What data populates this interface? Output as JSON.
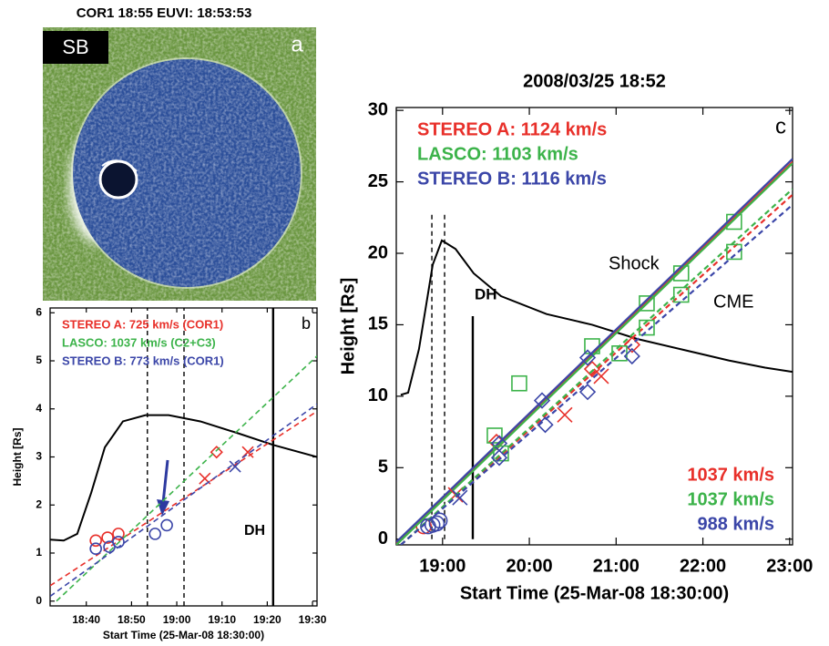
{
  "panel_a": {
    "title": "COR1 18:55 EUVI: 18:53:53",
    "badge": "SB",
    "label": "a"
  },
  "chart_data": [
    {
      "type": "line",
      "panel_label": "b",
      "xlabel": "Start Time (25-Mar-08 18:30:00)",
      "ylabel": "Height [Rs]",
      "xlim": [
        2,
        61
      ],
      "xticks": [
        {
          "value": 10,
          "label": "18:40"
        },
        {
          "value": 20,
          "label": "18:50"
        },
        {
          "value": 30,
          "label": "19:00"
        },
        {
          "value": 40,
          "label": "19:10"
        },
        {
          "value": 50,
          "label": "19:20"
        },
        {
          "value": 60,
          "label": "19:30"
        }
      ],
      "ylim": [
        -0.1,
        6.1
      ],
      "yticks": [
        0,
        1,
        2,
        3,
        4,
        5,
        6
      ],
      "series": [
        {
          "name": "STEREO A: 725 km/s (COR1)",
          "color": "#e8302a",
          "style": "dashed",
          "legend": "upper left",
          "fit_x": [
            2,
            61
          ],
          "fit_values": [
            0.32,
            3.95
          ],
          "points": [
            {
              "marker": "circle",
              "x": [
                12.1,
                14.7,
                17.1
              ],
              "values": [
                1.26,
                1.32,
                1.4
              ]
            },
            {
              "marker": "diamond",
              "x": [
                38.8
              ],
              "values": [
                3.1
              ]
            },
            {
              "marker": "cross",
              "x": [
                36.2,
                45.7
              ],
              "values": [
                2.55,
                3.1
              ]
            }
          ]
        },
        {
          "name": "LASCO: 1037 km/s (C2+C3)",
          "color": "#3cb34a",
          "style": "dashed",
          "legend": "upper left",
          "fit_x": [
            3.4,
            61
          ],
          "fit_values": [
            0,
            5.1
          ],
          "points": []
        },
        {
          "name": "STEREO B: 773 km/s (COR1)",
          "color": "#3b46a8",
          "style": "dashed",
          "legend": "upper left",
          "fit_x": [
            2,
            61
          ],
          "fit_values": [
            0.1,
            4.1
          ],
          "points": [
            {
              "marker": "circle",
              "x": [
                12.1,
                15.1,
                17.1,
                25.2,
                27.8
              ],
              "values": [
                1.09,
                1.13,
                1.23,
                1.4,
                1.58
              ]
            },
            {
              "marker": "cross",
              "x": [
                42.9
              ],
              "values": [
                2.8
              ]
            }
          ]
        }
      ],
      "profile": {
        "color": "#000000",
        "x": [
          2,
          5,
          8,
          11.1,
          14.1,
          18.1,
          23.1,
          28.2,
          35.2,
          43.3,
          51.3,
          61
        ],
        "values": [
          1.28,
          1.26,
          1.4,
          2.26,
          3.2,
          3.74,
          3.87,
          3.87,
          3.74,
          3.5,
          3.25,
          3.0
        ]
      },
      "vlines": [
        {
          "x": 23.5,
          "style": "dashed",
          "y": [
            -0.1,
            6.1
          ]
        },
        {
          "x": 31.6,
          "style": "dashed",
          "y": [
            -0.1,
            6.1
          ]
        },
        {
          "x": 51.3,
          "style": "solid",
          "y": [
            -0.1,
            6.1
          ]
        }
      ],
      "annotations": [
        {
          "text": "DH"
        }
      ]
    },
    {
      "type": "line",
      "title": "2008/03/25 18:52",
      "panel_label": "c",
      "xlabel": "Start Time (25-Mar-08 18:30:00)",
      "ylabel": "Height [Rs]",
      "xlim": [
        -2,
        272
      ],
      "xticks": [
        {
          "value": 30,
          "label": "19:00"
        },
        {
          "value": 90,
          "label": "20:00"
        },
        {
          "value": 150,
          "label": "21:00"
        },
        {
          "value": 210,
          "label": "22:00"
        },
        {
          "value": 270,
          "label": "23:00"
        }
      ],
      "ylim": [
        -0.4,
        30.2
      ],
      "yticks": [
        0,
        5,
        10,
        15,
        20,
        25,
        30
      ],
      "series": [
        {
          "name": "STEREO A: 1124 km/s",
          "color": "#e8302a",
          "style": "solid",
          "legend": "upper left",
          "fit_x": [
            -2,
            272
          ],
          "fit_values": [
            -0.3,
            26.4
          ],
          "points": [
            {
              "marker": "circle",
              "x": [
                17
              ],
              "values": [
                0.9
              ]
            },
            {
              "marker": "diamond",
              "x": [
                67.3,
                133.4,
                161.1
              ],
              "values": [
                6.8,
                11.9,
                13.6
              ]
            }
          ]
        },
        {
          "name": "LASCO: 1103 km/s",
          "color": "#3cb34a",
          "style": "solid",
          "legend": "upper left",
          "fit_x": [
            -2,
            272
          ],
          "fit_values": [
            -0.4,
            26.3
          ],
          "points": [
            {
              "marker": "square",
              "x": [
                66,
                83,
                133.4,
                171.2,
                195,
                231.6
              ],
              "values": [
                7.25,
                10.9,
                13.5,
                16.5,
                18.6,
                22.2
              ]
            }
          ]
        },
        {
          "name": "STEREO B: 1116 km/s",
          "color": "#3b46a8",
          "style": "solid",
          "legend": "upper left",
          "fit_x": [
            -2,
            272
          ],
          "fit_values": [
            -0.2,
            26.6
          ],
          "points": [
            {
              "marker": "circle",
              "x": [
                20,
                23,
                26,
                28
              ],
              "values": [
                0.9,
                1.0,
                1.1,
                1.3
              ]
            },
            {
              "marker": "diamond",
              "x": [
                69.2,
                98.8,
                130.3
              ],
              "values": [
                6.7,
                9.7,
                12.7
              ]
            }
          ]
        },
        {
          "name": "1037 km/s",
          "color": "#e8302a",
          "style": "dashed",
          "legend": "lower right",
          "fit_x": [
            1.15,
            272
          ],
          "fit_values": [
            -0.4,
            24.1
          ],
          "points": [
            {
              "marker": "cross",
              "x": [
                39,
                114.5,
                139.7
              ],
              "values": [
                3.1,
                8.7,
                11.4
              ]
            }
          ]
        },
        {
          "name": "1037 km/s",
          "color": "#3cb34a",
          "style": "dashed",
          "legend": "lower right",
          "fit_x": [
            1.15,
            272
          ],
          "fit_values": [
            -0.4,
            24.5
          ],
          "points": [
            {
              "marker": "square",
              "x": [
                70.4,
                152.3,
                171.2,
                195,
                231.6
              ],
              "values": [
                6.0,
                13.0,
                14.8,
                17.1,
                20.1
              ]
            }
          ]
        },
        {
          "name": "988 km/s",
          "color": "#3b46a8",
          "style": "dashed",
          "legend": "lower right",
          "fit_x": [
            1.15,
            272
          ],
          "fit_values": [
            -0.4,
            23.4
          ],
          "points": [
            {
              "marker": "diamond",
              "x": [
                69.2,
                101,
                130.3,
                161
              ],
              "values": [
                5.7,
                8.0,
                10.3,
                12.8
              ]
            },
            {
              "marker": "cross",
              "x": [
                42
              ],
              "values": [
                2.9
              ]
            }
          ]
        }
      ],
      "profile": {
        "color": "#000000",
        "x": [
          1.1,
          6.2,
          13.7,
          23.2,
          29.5,
          39,
          51.5,
          70.4,
          101.9,
          133.4,
          164.9,
          196.4,
          227.9,
          253,
          272
        ],
        "values": [
          10.1,
          10.25,
          13.3,
          19.2,
          20.9,
          20.3,
          18.6,
          17,
          15.75,
          15,
          14,
          13.25,
          12.5,
          12,
          11.7
        ]
      },
      "vlines": [
        {
          "x": 22.6,
          "style": "dashed",
          "y": [
            0,
            22.7
          ]
        },
        {
          "x": 31.4,
          "style": "dashed",
          "y": [
            0,
            22.7
          ]
        },
        {
          "x": 50.9,
          "style": "solid",
          "y": [
            0,
            15.6
          ]
        }
      ],
      "annotations": [
        {
          "text": "DH"
        },
        {
          "text": "Shock"
        },
        {
          "text": "CME"
        }
      ]
    }
  ]
}
